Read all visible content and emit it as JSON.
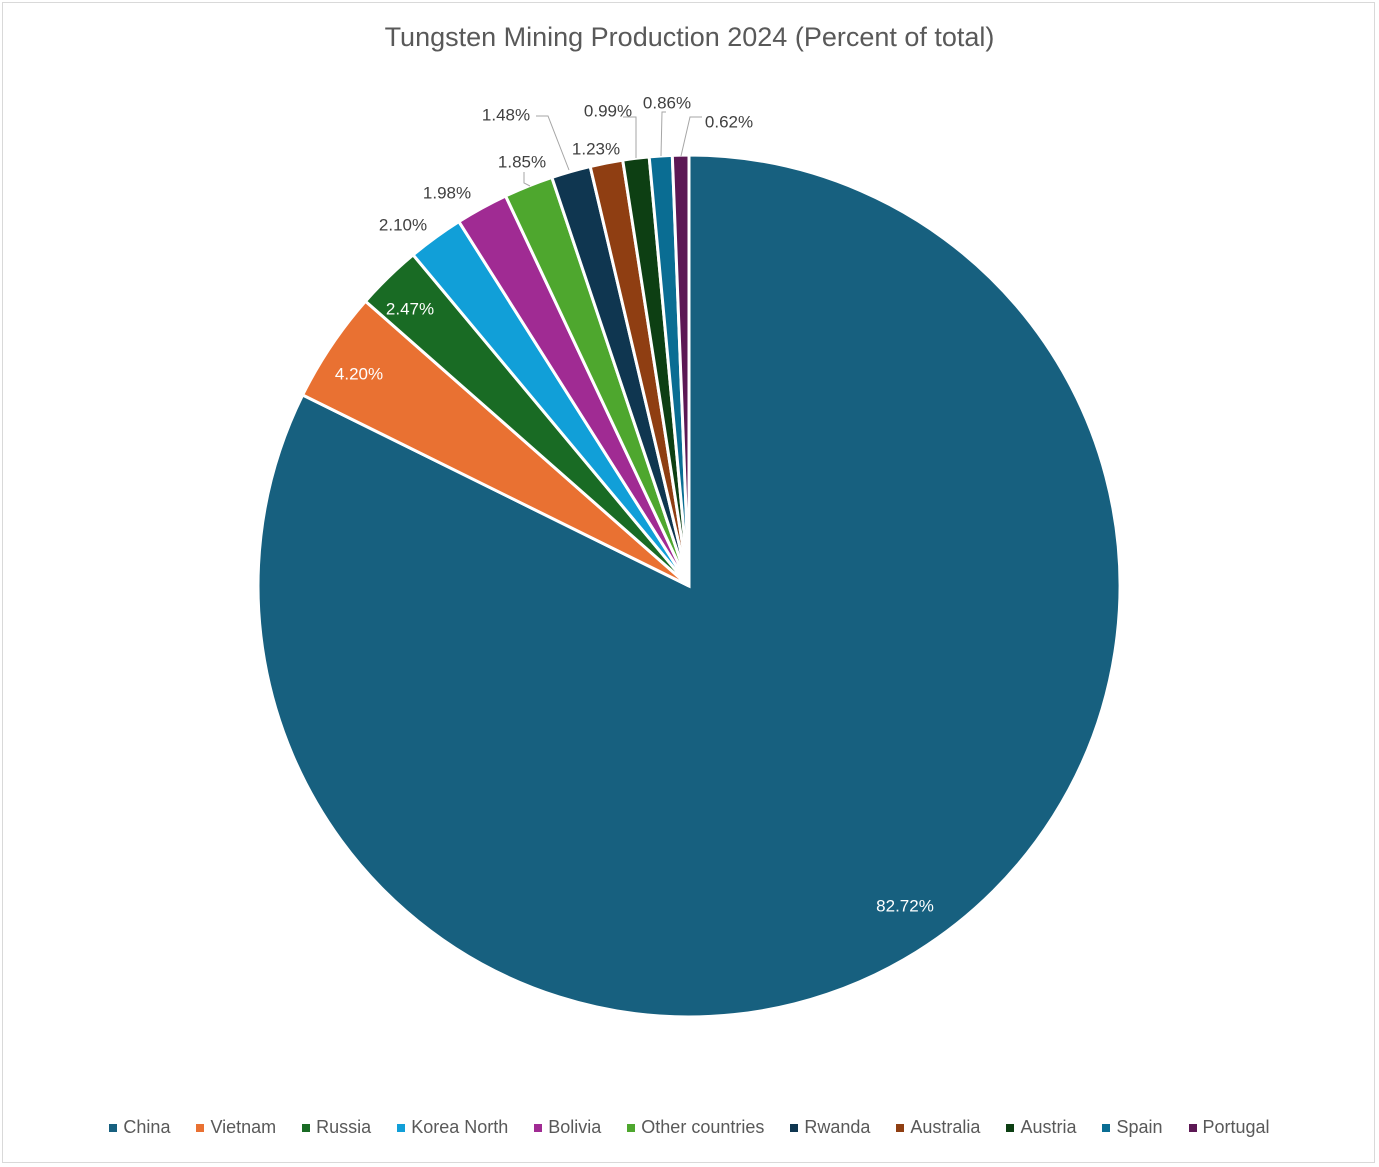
{
  "chart_data": {
    "type": "pie",
    "title": "Tungsten Mining Production 2024 (Percent of total)",
    "legend_position": "bottom",
    "slices": [
      {
        "name": "China",
        "value": 82.72,
        "label": "82.72%",
        "color": "#17607f"
      },
      {
        "name": "Vietnam",
        "value": 4.2,
        "label": "4.20%",
        "color": "#e97132"
      },
      {
        "name": "Russia",
        "value": 2.47,
        "label": "2.47%",
        "color": "#196b24"
      },
      {
        "name": "Korea North",
        "value": 2.1,
        "label": "2.10%",
        "color": "#119fd8"
      },
      {
        "name": "Bolivia",
        "value": 1.98,
        "label": "1.98%",
        "color": "#a02b93"
      },
      {
        "name": "Other countries",
        "value": 1.85,
        "label": "1.85%",
        "color": "#4ea72e"
      },
      {
        "name": "Rwanda",
        "value": 1.48,
        "label": "1.48%",
        "color": "#0f3650"
      },
      {
        "name": "Australia",
        "value": 1.23,
        "label": "1.23%",
        "color": "#8f3e12"
      },
      {
        "name": "Austria",
        "value": 0.99,
        "label": "0.99%",
        "color": "#0d3f13"
      },
      {
        "name": "Spain",
        "value": 0.86,
        "label": "0.86%",
        "color": "#0a6d93"
      },
      {
        "name": "Portugal",
        "value": 0.62,
        "label": "0.62%",
        "color": "#5c1854"
      }
    ]
  }
}
